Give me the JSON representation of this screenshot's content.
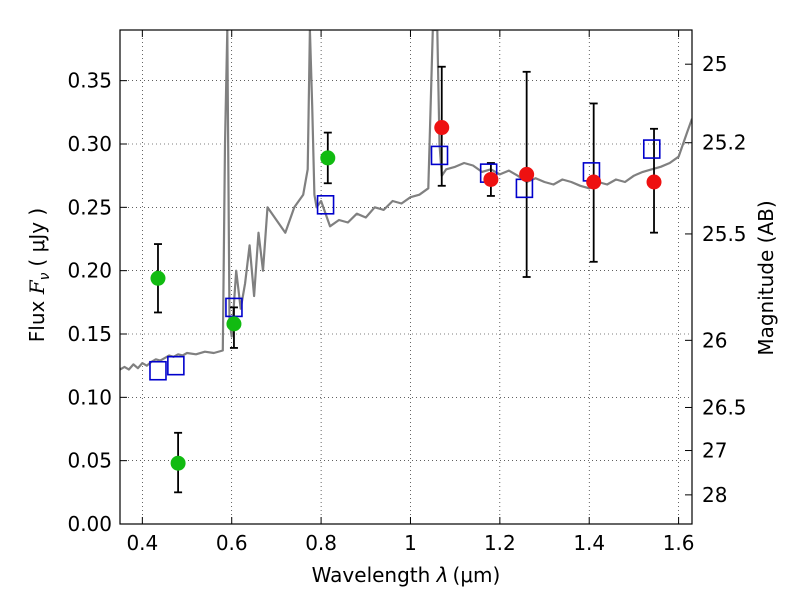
{
  "chart_data": {
    "type": "scatter",
    "xlim": [
      0.35,
      1.63
    ],
    "ylim": [
      0.0,
      0.39
    ],
    "grid": true,
    "xlabel": {
      "prefix": "Wavelength ",
      "symbol": "λ",
      "units": "(μm)"
    },
    "ylabel": {
      "prefix": "Flux ",
      "symbol": "F",
      "subscript": "ν",
      "units": "( μJy )"
    },
    "y2label": "Magnitude (AB)",
    "x_ticks": [
      {
        "value": 0.4,
        "label": "0.4"
      },
      {
        "value": 0.6,
        "label": "0.6"
      },
      {
        "value": 0.8,
        "label": "0.8"
      },
      {
        "value": 1.0,
        "label": "1"
      },
      {
        "value": 1.2,
        "label": "1.2"
      },
      {
        "value": 1.4,
        "label": "1.4"
      },
      {
        "value": 1.6,
        "label": "1.6"
      }
    ],
    "y_ticks": [
      {
        "value": 0.0,
        "label": "0.00"
      },
      {
        "value": 0.05,
        "label": "0.05"
      },
      {
        "value": 0.1,
        "label": "0.10"
      },
      {
        "value": 0.15,
        "label": "0.15"
      },
      {
        "value": 0.2,
        "label": "0.20"
      },
      {
        "value": 0.25,
        "label": "0.25"
      },
      {
        "value": 0.3,
        "label": "0.30"
      },
      {
        "value": 0.35,
        "label": "0.35"
      }
    ],
    "y2_ticks": [
      {
        "flux": 0.363,
        "label": "25"
      },
      {
        "flux": 0.301,
        "label": "25.2"
      },
      {
        "flux": 0.229,
        "label": "25.5"
      },
      {
        "flux": 0.145,
        "label": "26"
      },
      {
        "flux": 0.092,
        "label": "26.5"
      },
      {
        "flux": 0.058,
        "label": "27"
      },
      {
        "flux": 0.023,
        "label": "28"
      }
    ],
    "series": [
      {
        "kind": "spectrum",
        "color": "#808080",
        "x": [
          0.35,
          0.36,
          0.37,
          0.38,
          0.39,
          0.4,
          0.41,
          0.42,
          0.43,
          0.44,
          0.45,
          0.46,
          0.47,
          0.48,
          0.49,
          0.5,
          0.52,
          0.54,
          0.56,
          0.58,
          0.585,
          0.59,
          0.595,
          0.6,
          0.61,
          0.62,
          0.63,
          0.64,
          0.65,
          0.66,
          0.67,
          0.68,
          0.7,
          0.72,
          0.74,
          0.76,
          0.77,
          0.775,
          0.78,
          0.785,
          0.79,
          0.8,
          0.82,
          0.84,
          0.86,
          0.88,
          0.9,
          0.92,
          0.94,
          0.96,
          0.98,
          1.0,
          1.02,
          1.04,
          1.05,
          1.055,
          1.06,
          1.065,
          1.07,
          1.08,
          1.1,
          1.12,
          1.14,
          1.16,
          1.18,
          1.2,
          1.22,
          1.24,
          1.26,
          1.28,
          1.3,
          1.32,
          1.34,
          1.36,
          1.38,
          1.4,
          1.42,
          1.44,
          1.46,
          1.48,
          1.5,
          1.52,
          1.54,
          1.56,
          1.58,
          1.6,
          1.62,
          1.63
        ],
        "y": [
          0.122,
          0.124,
          0.122,
          0.126,
          0.123,
          0.127,
          0.125,
          0.128,
          0.13,
          0.129,
          0.131,
          0.133,
          0.132,
          0.134,
          0.133,
          0.135,
          0.134,
          0.136,
          0.135,
          0.137,
          0.3,
          0.39,
          0.16,
          0.148,
          0.2,
          0.17,
          0.19,
          0.22,
          0.18,
          0.23,
          0.2,
          0.25,
          0.24,
          0.23,
          0.25,
          0.26,
          0.28,
          0.39,
          0.33,
          0.26,
          0.25,
          0.255,
          0.235,
          0.24,
          0.238,
          0.245,
          0.242,
          0.25,
          0.248,
          0.255,
          0.253,
          0.258,
          0.26,
          0.265,
          0.39,
          0.39,
          0.39,
          0.3,
          0.275,
          0.28,
          0.282,
          0.285,
          0.283,
          0.278,
          0.28,
          0.276,
          0.279,
          0.275,
          0.27,
          0.273,
          0.27,
          0.268,
          0.272,
          0.27,
          0.267,
          0.265,
          0.27,
          0.268,
          0.272,
          0.27,
          0.275,
          0.278,
          0.28,
          0.282,
          0.285,
          0.29,
          0.31,
          0.32
        ]
      },
      {
        "kind": "model-photometry",
        "marker": "open-square",
        "color": "#0000cc",
        "points": [
          {
            "x": 0.435,
            "y": 0.121
          },
          {
            "x": 0.475,
            "y": 0.125
          },
          {
            "x": 0.605,
            "y": 0.171
          },
          {
            "x": 0.81,
            "y": 0.252
          },
          {
            "x": 1.065,
            "y": 0.291
          },
          {
            "x": 1.175,
            "y": 0.277
          },
          {
            "x": 1.255,
            "y": 0.265
          },
          {
            "x": 1.405,
            "y": 0.278
          },
          {
            "x": 1.54,
            "y": 0.296
          }
        ]
      },
      {
        "kind": "observed-optical",
        "marker": "filled-circle",
        "color": "#11bb11",
        "points": [
          {
            "x": 0.435,
            "y": 0.194,
            "yerr": [
              0.167,
              0.221
            ]
          },
          {
            "x": 0.48,
            "y": 0.048,
            "yerr": [
              0.025,
              0.072
            ]
          },
          {
            "x": 0.605,
            "y": 0.158,
            "yerr": [
              0.139,
              0.171
            ]
          },
          {
            "x": 0.815,
            "y": 0.289,
            "yerr": [
              0.269,
              0.309
            ]
          }
        ]
      },
      {
        "kind": "observed-nir",
        "marker": "filled-circle",
        "color": "#ee1111",
        "points": [
          {
            "x": 1.07,
            "y": 0.313,
            "yerr": [
              0.267,
              0.361
            ]
          },
          {
            "x": 1.18,
            "y": 0.272,
            "yerr": [
              0.259,
              0.285
            ]
          },
          {
            "x": 1.26,
            "y": 0.276,
            "yerr": [
              0.195,
              0.357
            ]
          },
          {
            "x": 1.41,
            "y": 0.27,
            "yerr": [
              0.207,
              0.332
            ]
          },
          {
            "x": 1.545,
            "y": 0.27,
            "yerr": [
              0.23,
              0.312
            ]
          }
        ]
      }
    ]
  }
}
